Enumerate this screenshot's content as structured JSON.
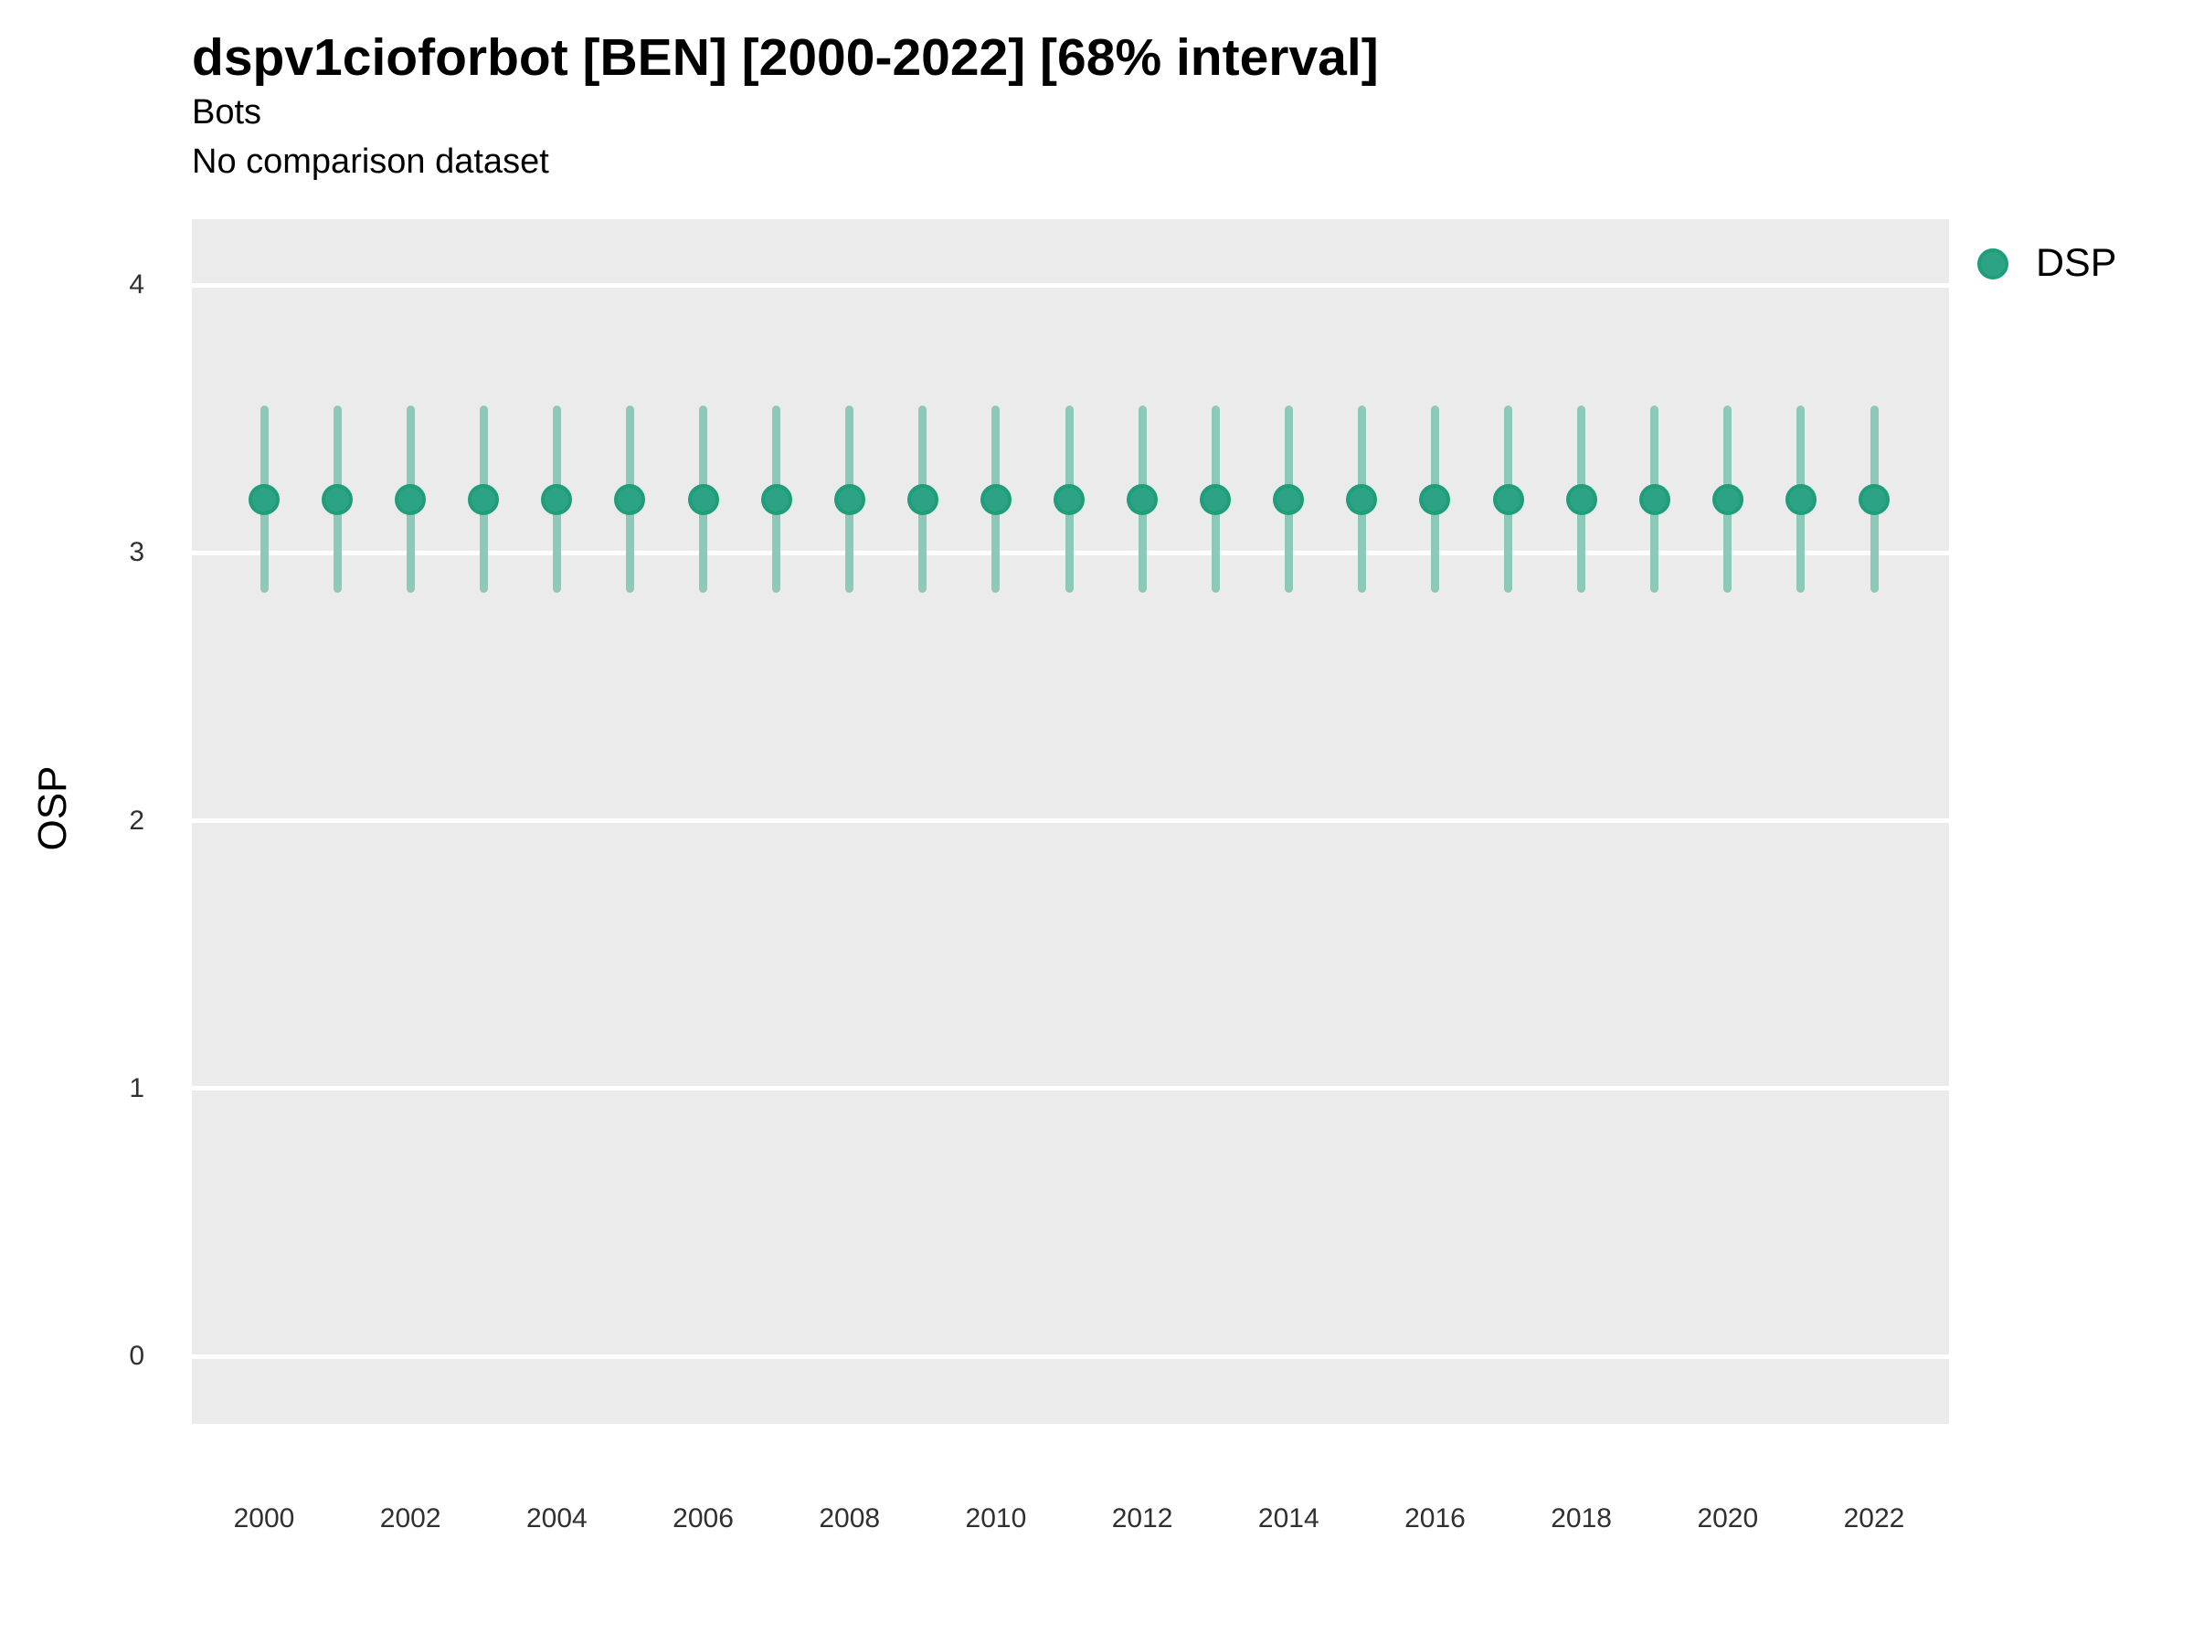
{
  "header": {
    "title": "dspv1cioforbot [BEN] [2000-2022] [68% interval]",
    "subtitle": "Bots",
    "comparison_note": "No comparison dataset"
  },
  "legend": {
    "items": [
      {
        "label": "DSP",
        "marker": "circle-icon",
        "fill": "#2da386",
        "stroke": "#209d7b"
      }
    ]
  },
  "axes": {
    "y_label": "OSP",
    "y_ticks": [
      0,
      1,
      2,
      3,
      4
    ],
    "x_tick_labels": [
      "2000",
      "2002",
      "2004",
      "2006",
      "2008",
      "2010",
      "2012",
      "2014",
      "2016",
      "2018",
      "2020",
      "2022"
    ],
    "x_tick_years": [
      2000,
      2002,
      2004,
      2006,
      2008,
      2010,
      2012,
      2014,
      2016,
      2018,
      2020,
      2022
    ]
  },
  "colors": {
    "panel_background": "#ebebeb",
    "gridline": "#ffffff",
    "point_fill": "#2da386",
    "point_stroke": "#209d7b",
    "interval_bar": "#8dc9b8",
    "text": "#000000",
    "tick_text": "#303030"
  },
  "chart_data": {
    "type": "scatter",
    "title": "dspv1cioforbot [BEN] [2000-2022] [68% interval]",
    "subtitle": "Bots",
    "note": "No comparison dataset",
    "xlabel": "",
    "ylabel": "OSP",
    "ylim": [
      -0.25,
      4.25
    ],
    "xlim": [
      1999,
      2023
    ],
    "grid": "major-horizontal-only",
    "legend_position": "right",
    "interval_level": "68%",
    "series": [
      {
        "name": "DSP",
        "x": [
          2000,
          2001,
          2002,
          2003,
          2004,
          2005,
          2006,
          2007,
          2008,
          2009,
          2010,
          2011,
          2012,
          2013,
          2014,
          2015,
          2016,
          2017,
          2018,
          2019,
          2020,
          2021,
          2022
        ],
        "y": [
          3.2,
          3.2,
          3.2,
          3.2,
          3.2,
          3.2,
          3.2,
          3.2,
          3.2,
          3.2,
          3.2,
          3.2,
          3.2,
          3.2,
          3.2,
          3.2,
          3.2,
          3.2,
          3.2,
          3.2,
          3.2,
          3.2,
          3.2
        ],
        "y_low": [
          2.85,
          2.85,
          2.85,
          2.85,
          2.85,
          2.85,
          2.85,
          2.85,
          2.85,
          2.85,
          2.85,
          2.85,
          2.85,
          2.85,
          2.85,
          2.85,
          2.85,
          2.85,
          2.85,
          2.85,
          2.85,
          2.85,
          2.85
        ],
        "y_high": [
          3.55,
          3.55,
          3.55,
          3.55,
          3.55,
          3.55,
          3.55,
          3.55,
          3.55,
          3.55,
          3.55,
          3.55,
          3.55,
          3.55,
          3.55,
          3.55,
          3.55,
          3.55,
          3.55,
          3.55,
          3.55,
          3.55,
          3.55
        ]
      }
    ]
  }
}
